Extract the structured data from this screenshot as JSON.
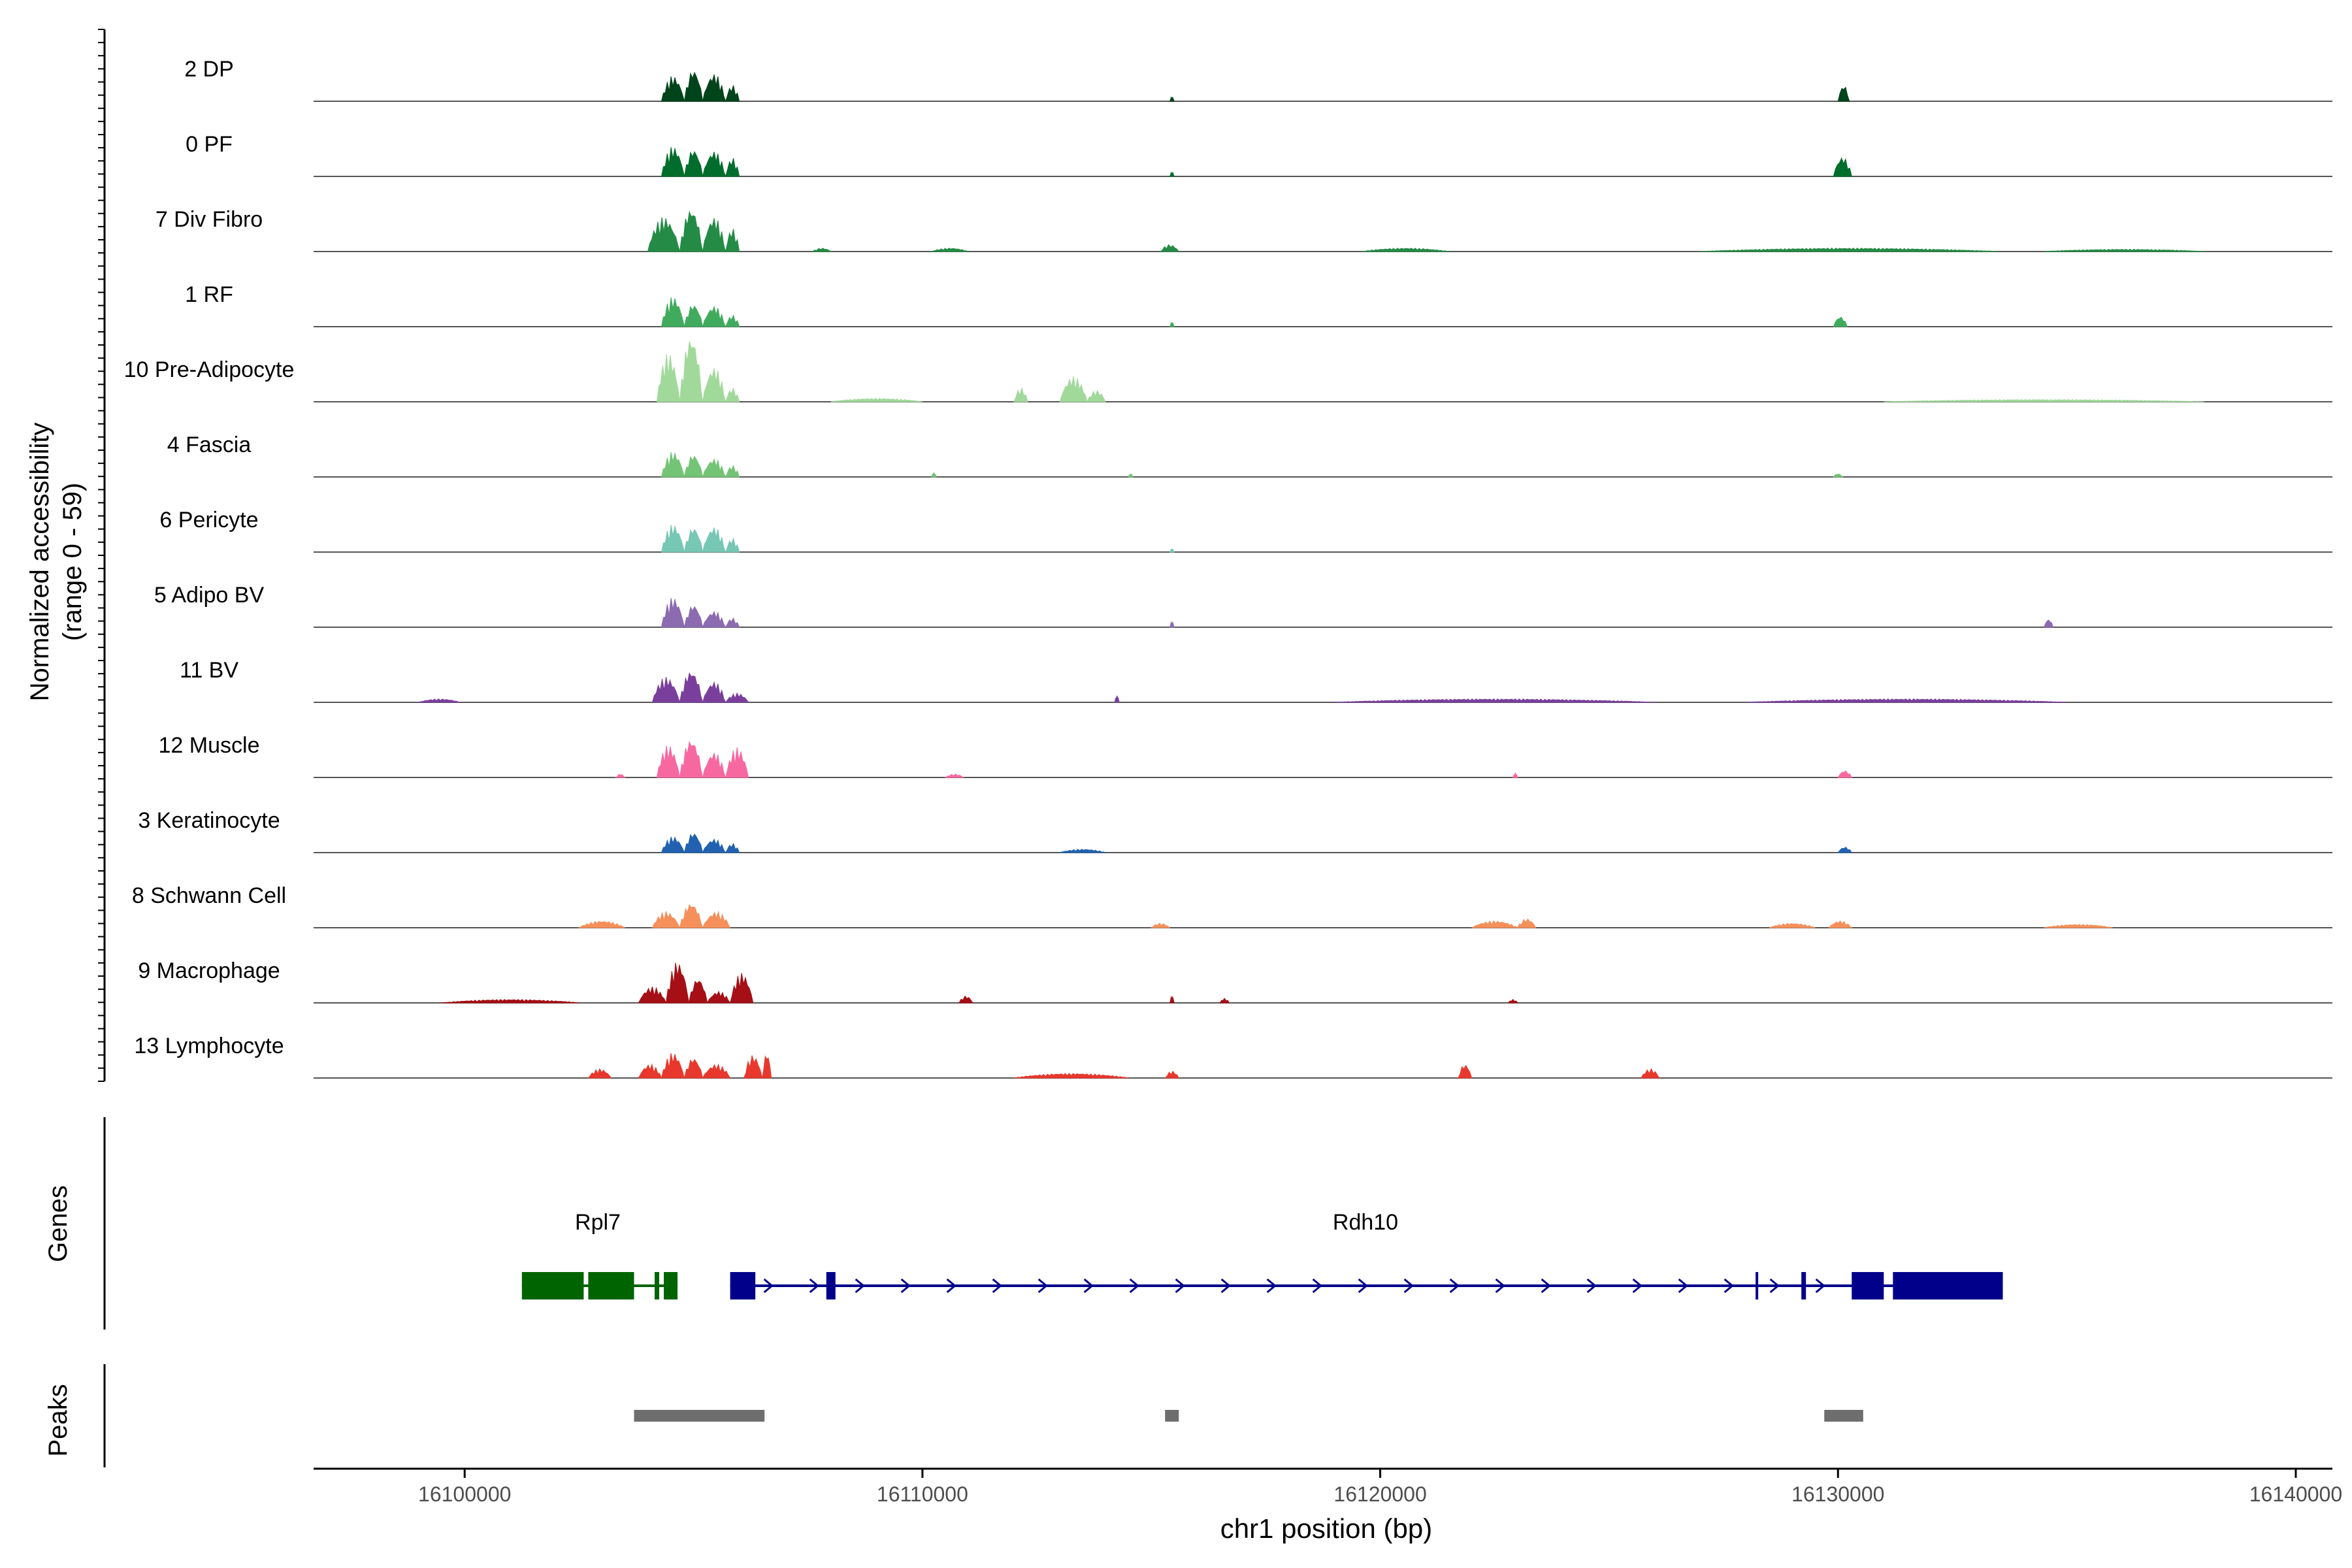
{
  "chart_data": {
    "type": "area",
    "title": "",
    "chromosome": "chr1",
    "xlabel": "chr1 position (bp)",
    "ylabel_line1": "Normalized accessibility",
    "ylabel_line2": "(range 0 - 59)",
    "ylim": [
      0,
      59
    ],
    "xlim": [
      16096700,
      16140800
    ],
    "x_ticks": [
      {
        "value": 16100000,
        "label": "16100000"
      },
      {
        "value": 16110000,
        "label": "16110000"
      },
      {
        "value": 16120000,
        "label": "16120000"
      },
      {
        "value": 16130000,
        "label": "16130000"
      },
      {
        "value": 16140000,
        "label": "16140000"
      }
    ],
    "panel_labels": {
      "genes": "Genes",
      "peaks": "Peaks"
    },
    "tracks": [
      {
        "label": "2 DP",
        "color": "#00441b",
        "peaks": [
          [
            16104300,
            16104800,
            22
          ],
          [
            16104800,
            16105200,
            28
          ],
          [
            16105200,
            16105700,
            24
          ],
          [
            16105700,
            16106000,
            14
          ],
          [
            16115400,
            16115500,
            4
          ],
          [
            16130000,
            16130250,
            14
          ]
        ]
      },
      {
        "label": "0 PF",
        "color": "#006d2c",
        "peaks": [
          [
            16104300,
            16104800,
            26
          ],
          [
            16104800,
            16105200,
            24
          ],
          [
            16105200,
            16105700,
            22
          ],
          [
            16105700,
            16106000,
            16
          ],
          [
            16115400,
            16115500,
            4
          ],
          [
            16129900,
            16130300,
            17
          ]
        ]
      },
      {
        "label": "7 Div Fibro",
        "color": "#238b45",
        "peaks": [
          [
            16104000,
            16104700,
            30
          ],
          [
            16104700,
            16105200,
            38
          ],
          [
            16105200,
            16105700,
            30
          ],
          [
            16105700,
            16106000,
            20
          ],
          [
            16107600,
            16108000,
            3
          ],
          [
            16110200,
            16111000,
            3
          ],
          [
            16115200,
            16115600,
            6
          ],
          [
            16119600,
            16121500,
            3
          ],
          [
            16127000,
            16133500,
            3
          ],
          [
            16134500,
            16138000,
            2
          ]
        ]
      },
      {
        "label": "1 RF",
        "color": "#41ab5d",
        "peaks": [
          [
            16104300,
            16104800,
            26
          ],
          [
            16104800,
            16105200,
            20
          ],
          [
            16105200,
            16105700,
            18
          ],
          [
            16105700,
            16106000,
            10
          ],
          [
            16115400,
            16115500,
            4
          ],
          [
            16129900,
            16130200,
            9
          ]
        ]
      },
      {
        "label": "10 Pre-Adipocyte",
        "color": "#a1d99b",
        "peaks": [
          [
            16104200,
            16104700,
            42
          ],
          [
            16104700,
            16105200,
            58
          ],
          [
            16105200,
            16105700,
            30
          ],
          [
            16105700,
            16106000,
            12
          ],
          [
            16112000,
            16112300,
            12
          ],
          [
            16113000,
            16113600,
            22
          ],
          [
            16113600,
            16114000,
            10
          ],
          [
            16108000,
            16110000,
            3
          ],
          [
            16131000,
            16138000,
            2
          ]
        ]
      },
      {
        "label": "4 Fascia",
        "color": "#74c476",
        "peaks": [
          [
            16104300,
            16104800,
            22
          ],
          [
            16104800,
            16105200,
            20
          ],
          [
            16105200,
            16105700,
            16
          ],
          [
            16105700,
            16106000,
            10
          ],
          [
            16110200,
            16110300,
            4
          ],
          [
            16114500,
            16114600,
            3
          ],
          [
            16129900,
            16130100,
            3
          ]
        ]
      },
      {
        "label": "6 Pericyte",
        "color": "#76c7b4",
        "peaks": [
          [
            16104300,
            16104800,
            24
          ],
          [
            16104800,
            16105200,
            22
          ],
          [
            16105200,
            16105700,
            22
          ],
          [
            16105700,
            16106000,
            12
          ],
          [
            16115400,
            16115500,
            3
          ]
        ]
      },
      {
        "label": "5 Adipo BV",
        "color": "#8c6bb1",
        "peaks": [
          [
            16104300,
            16104800,
            26
          ],
          [
            16104800,
            16105200,
            20
          ],
          [
            16105200,
            16105700,
            14
          ],
          [
            16105700,
            16106000,
            8
          ],
          [
            16115400,
            16115500,
            5
          ],
          [
            16134500,
            16134700,
            7
          ]
        ]
      },
      {
        "label": "11 BV",
        "color": "#7a3f9d",
        "peaks": [
          [
            16104100,
            16104700,
            22
          ],
          [
            16104700,
            16105200,
            28
          ],
          [
            16105200,
            16105700,
            18
          ],
          [
            16105700,
            16106200,
            8
          ],
          [
            16099000,
            16099900,
            3
          ],
          [
            16114200,
            16114300,
            6
          ],
          [
            16119000,
            16126000,
            3
          ],
          [
            16128000,
            16135000,
            3
          ]
        ]
      },
      {
        "label": "12 Muscle",
        "color": "#f768a1",
        "peaks": [
          [
            16104200,
            16104700,
            28
          ],
          [
            16104700,
            16105200,
            34
          ],
          [
            16105200,
            16105700,
            22
          ],
          [
            16105700,
            16106200,
            26
          ],
          [
            16103300,
            16103500,
            3
          ],
          [
            16110500,
            16110900,
            3
          ],
          [
            16122900,
            16123000,
            4
          ],
          [
            16130000,
            16130300,
            6
          ]
        ]
      },
      {
        "label": "3 Keratinocyte",
        "color": "#2161b0",
        "peaks": [
          [
            16104300,
            16104800,
            14
          ],
          [
            16104800,
            16105200,
            18
          ],
          [
            16105200,
            16105700,
            12
          ],
          [
            16105700,
            16106000,
            8
          ],
          [
            16113000,
            16114000,
            3
          ],
          [
            16130000,
            16130300,
            5
          ]
        ]
      },
      {
        "label": "8 Schwann Cell",
        "color": "#f5905a",
        "peaks": [
          [
            16102500,
            16103500,
            6
          ],
          [
            16104100,
            16104700,
            14
          ],
          [
            16104700,
            16105200,
            22
          ],
          [
            16105200,
            16105800,
            14
          ],
          [
            16115000,
            16115400,
            4
          ],
          [
            16122000,
            16123000,
            6
          ],
          [
            16123000,
            16123400,
            8
          ],
          [
            16128500,
            16129500,
            4
          ],
          [
            16129800,
            16130300,
            6
          ],
          [
            16134500,
            16136000,
            3
          ]
        ]
      },
      {
        "label": "9 Macrophage",
        "color": "#a50f15",
        "peaks": [
          [
            16103800,
            16104400,
            14
          ],
          [
            16104400,
            16104900,
            36
          ],
          [
            16104900,
            16105300,
            22
          ],
          [
            16105300,
            16105800,
            10
          ],
          [
            16105800,
            16106300,
            26
          ],
          [
            16099500,
            16102500,
            3
          ],
          [
            16110800,
            16111100,
            6
          ],
          [
            16115400,
            16115500,
            6
          ],
          [
            16116500,
            16116700,
            4
          ],
          [
            16122800,
            16123000,
            3
          ]
        ]
      },
      {
        "label": "13 Lymphocyte",
        "color": "#e8382d",
        "peaks": [
          [
            16103800,
            16104300,
            12
          ],
          [
            16104300,
            16104800,
            22
          ],
          [
            16104800,
            16105200,
            18
          ],
          [
            16105200,
            16105800,
            12
          ],
          [
            16106100,
            16106500,
            20
          ],
          [
            16106500,
            16106700,
            22
          ],
          [
            16102700,
            16103200,
            8
          ],
          [
            16121700,
            16122000,
            12
          ],
          [
            16125700,
            16126100,
            8
          ],
          [
            16115300,
            16115600,
            6
          ],
          [
            16112000,
            16114500,
            4
          ]
        ]
      }
    ],
    "genes": [
      {
        "name": "Rpl7",
        "color": "#006400",
        "start": 16101250,
        "end": 16104650,
        "strand": "-",
        "exons": [
          [
            16101250,
            16102600
          ],
          [
            16102700,
            16103700
          ],
          [
            16104150,
            16104250
          ],
          [
            16104350,
            16104650
          ]
        ]
      },
      {
        "name": "Rdh10",
        "color": "#00008b",
        "start": 16105800,
        "end": 16133600,
        "strand": "+",
        "exons": [
          [
            16105800,
            16106350
          ],
          [
            16107900,
            16108100
          ],
          [
            16128200,
            16128250
          ],
          [
            16129200,
            16129300
          ],
          [
            16130300,
            16131000
          ],
          [
            16131200,
            16133600
          ]
        ]
      }
    ],
    "peaks": [
      [
        16103700,
        16106550
      ],
      [
        16115300,
        16115600
      ],
      [
        16129700,
        16130550
      ]
    ]
  }
}
